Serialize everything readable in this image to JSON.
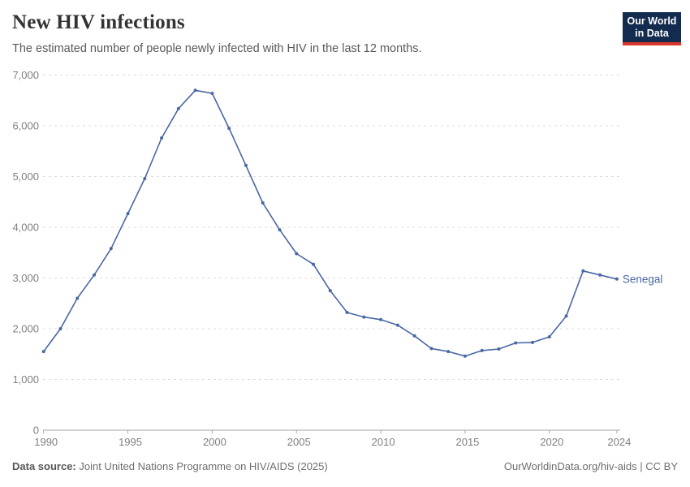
{
  "header": {
    "title": "New HIV infections",
    "subtitle": "The estimated number of people newly infected with HIV in the last 12 months.",
    "logo": {
      "line1": "Our World",
      "line2": "in Data"
    }
  },
  "chart_data": {
    "type": "line",
    "title": "New HIV infections",
    "entity_label": "Senegal",
    "x": [
      1990,
      1991,
      1992,
      1993,
      1994,
      1995,
      1996,
      1997,
      1998,
      1999,
      2000,
      2001,
      2002,
      2003,
      2004,
      2005,
      2006,
      2007,
      2008,
      2009,
      2010,
      2011,
      2012,
      2013,
      2014,
      2015,
      2016,
      2017,
      2018,
      2019,
      2020,
      2021,
      2022,
      2023,
      2024
    ],
    "series": [
      {
        "name": "Senegal",
        "values": [
          1550,
          2000,
          2600,
          3060,
          3580,
          4270,
          4960,
          5760,
          6340,
          6700,
          6640,
          5950,
          5220,
          4480,
          3950,
          3480,
          3270,
          2750,
          2320,
          2230,
          2180,
          2070,
          1860,
          1610,
          1550,
          1460,
          1570,
          1600,
          1720,
          1730,
          1840,
          2250,
          3140,
          3060,
          2980
        ]
      }
    ],
    "xlabel": "",
    "ylabel": "",
    "xlim": [
      1990,
      2024
    ],
    "ylim": [
      0,
      7000
    ],
    "xticks": [
      1990,
      1995,
      2000,
      2005,
      2010,
      2015,
      2020,
      2024
    ],
    "yticks": [
      0,
      1000,
      2000,
      3000,
      4000,
      5000,
      6000,
      7000
    ],
    "ytick_labels": [
      "0",
      "1,000",
      "2,000",
      "3,000",
      "4,000",
      "5,000",
      "6,000",
      "7,000"
    ],
    "grid": "horizontal dashed",
    "legend": "inline entity label at right end of line",
    "markers": true
  },
  "colors": {
    "line": "#4a67a4",
    "grid": "#dcdcdc",
    "axis": "#a5a5a5",
    "tick_text": "#7f7f7f",
    "entity_text": "#4a67a4",
    "logo_bg": "#122b4f",
    "logo_red": "#d8352b"
  },
  "footer": {
    "source_label": "Data source:",
    "source_text": " Joint United Nations Programme on HIV/AIDS (2025)",
    "right_text": "OurWorldinData.org/hiv-aids | CC BY"
  }
}
